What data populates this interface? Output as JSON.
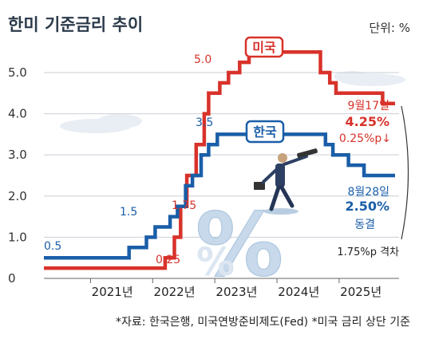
{
  "title": "한미 기준금리 추이",
  "unit": "단위: %",
  "source": "*자료: 한국은행, 미국연방준비제도(Fed)  *미국 금리 상단 기준",
  "colors": {
    "us": "#d8322a",
    "korea": "#1a5ea8",
    "grid": "#c9cfd6",
    "title": "#2b3a4a"
  },
  "chart_data": {
    "type": "line",
    "step": true,
    "ylim": [
      0,
      5.6
    ],
    "yticks": [
      "0",
      "1.0",
      "2.0",
      "3.0",
      "4.0",
      "5.0"
    ],
    "xlim": [
      2020.25,
      2025.9
    ],
    "xticks": [
      {
        "label": "2021년",
        "x": 2021.0
      },
      {
        "label": "2022년",
        "x": 2022.0
      },
      {
        "label": "2023년",
        "x": 2023.0
      },
      {
        "label": "2024년",
        "x": 2024.0
      },
      {
        "label": "2025년",
        "x": 2025.0
      }
    ],
    "grid": true,
    "series": [
      {
        "name": "미국",
        "key": "us",
        "points": [
          [
            2020.25,
            0.25
          ],
          [
            2022.2,
            0.25
          ],
          [
            2022.2,
            0.5
          ],
          [
            2022.35,
            0.5
          ],
          [
            2022.35,
            1.0
          ],
          [
            2022.45,
            1.0
          ],
          [
            2022.45,
            1.75
          ],
          [
            2022.55,
            1.75
          ],
          [
            2022.55,
            2.5
          ],
          [
            2022.7,
            2.5
          ],
          [
            2022.7,
            3.25
          ],
          [
            2022.83,
            3.25
          ],
          [
            2022.83,
            4.0
          ],
          [
            2022.9,
            4.0
          ],
          [
            2022.9,
            4.5
          ],
          [
            2023.08,
            4.5
          ],
          [
            2023.08,
            4.75
          ],
          [
            2023.22,
            4.75
          ],
          [
            2023.22,
            5.0
          ],
          [
            2023.4,
            5.0
          ],
          [
            2023.4,
            5.25
          ],
          [
            2023.55,
            5.25
          ],
          [
            2023.55,
            5.5
          ],
          [
            2024.7,
            5.5
          ],
          [
            2024.7,
            5.0
          ],
          [
            2024.85,
            5.0
          ],
          [
            2024.85,
            4.75
          ],
          [
            2024.95,
            4.75
          ],
          [
            2024.95,
            4.5
          ],
          [
            2025.7,
            4.5
          ],
          [
            2025.7,
            4.25
          ],
          [
            2025.9,
            4.25
          ]
        ]
      },
      {
        "name": "한국",
        "key": "korea",
        "points": [
          [
            2020.25,
            0.5
          ],
          [
            2021.62,
            0.5
          ],
          [
            2021.62,
            0.75
          ],
          [
            2021.9,
            0.75
          ],
          [
            2021.9,
            1.0
          ],
          [
            2022.04,
            1.0
          ],
          [
            2022.04,
            1.25
          ],
          [
            2022.28,
            1.25
          ],
          [
            2022.28,
            1.5
          ],
          [
            2022.4,
            1.5
          ],
          [
            2022.4,
            1.75
          ],
          [
            2022.53,
            1.75
          ],
          [
            2022.53,
            2.25
          ],
          [
            2022.64,
            2.25
          ],
          [
            2022.64,
            2.5
          ],
          [
            2022.78,
            2.5
          ],
          [
            2022.78,
            3.0
          ],
          [
            2022.9,
            3.0
          ],
          [
            2022.9,
            3.25
          ],
          [
            2023.04,
            3.25
          ],
          [
            2023.04,
            3.5
          ],
          [
            2024.78,
            3.5
          ],
          [
            2024.78,
            3.25
          ],
          [
            2024.9,
            3.25
          ],
          [
            2024.9,
            3.0
          ],
          [
            2025.15,
            3.0
          ],
          [
            2025.15,
            2.75
          ],
          [
            2025.4,
            2.75
          ],
          [
            2025.4,
            2.5
          ],
          [
            2025.9,
            2.5
          ]
        ]
      }
    ],
    "annotations": {
      "us_0_25": "0.25",
      "us_1_75": "1.75",
      "us_5_0": "5.0",
      "korea_0_5": "0.5",
      "korea_1_5": "1.5",
      "korea_3_5": "3.5",
      "us_badge": "미국",
      "korea_badge": "한국",
      "us_date": "9월17일",
      "us_rate": "4.25%",
      "us_change": "0.25%p↓",
      "korea_date": "8월28일",
      "korea_rate": "2.50%",
      "korea_status": "동결",
      "gap": "1.75%p 격차"
    }
  }
}
